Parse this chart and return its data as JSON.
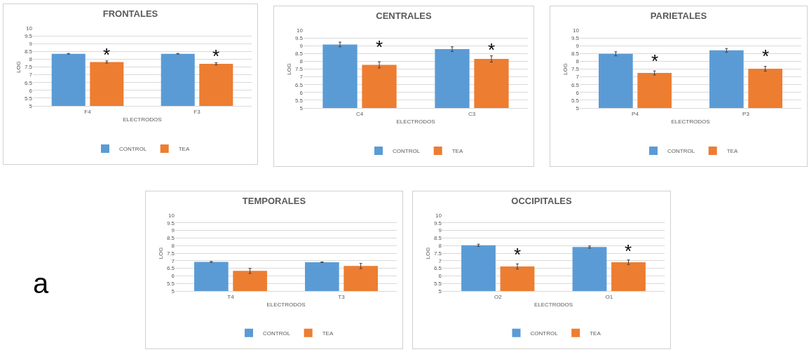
{
  "chart_data": [
    {
      "type": "bar",
      "title": "FRONTALES",
      "xlabel": "ELECTRODOS",
      "ylabel": "LOG",
      "categories": [
        "F4",
        "F3"
      ],
      "series": [
        {
          "name": "CONTROL",
          "color": "#5b9bd5",
          "values": [
            8.35,
            8.35
          ],
          "errors": [
            0.02,
            0.02
          ]
        },
        {
          "name": "TEA",
          "color": "#ed7d31",
          "values": [
            7.82,
            7.7
          ],
          "errors": [
            0.07,
            0.07
          ]
        }
      ],
      "ylim": [
        5,
        10
      ],
      "yticks": [
        5,
        5.5,
        6,
        6.5,
        7,
        7.5,
        8,
        8.5,
        9,
        9.5,
        10
      ],
      "grid": "y",
      "legend": "bottom",
      "annotations": [
        {
          "text": "*",
          "x": "F4",
          "y": 8.3
        },
        {
          "text": "*",
          "x": "F3",
          "y": 8.2
        }
      ]
    },
    {
      "type": "bar",
      "title": "CENTRALES",
      "xlabel": "ELECTRODOS",
      "ylabel": "LOG",
      "categories": [
        "C4",
        "C3"
      ],
      "series": [
        {
          "name": "CONTROL",
          "color": "#5b9bd5",
          "values": [
            9.08,
            8.78
          ],
          "errors": [
            0.15,
            0.15
          ]
        },
        {
          "name": "TEA",
          "color": "#ed7d31",
          "values": [
            7.77,
            8.15
          ],
          "errors": [
            0.2,
            0.2
          ]
        }
      ],
      "ylim": [
        5,
        10
      ],
      "yticks": [
        5,
        5.5,
        6,
        6.5,
        7,
        7.5,
        8,
        8.5,
        9,
        9.5,
        10
      ],
      "grid": "y",
      "legend": "bottom",
      "annotations": [
        {
          "text": "*",
          "x": "C4",
          "y": 8.9
        },
        {
          "text": "*",
          "x": "C3",
          "y": 8.75
        }
      ]
    },
    {
      "type": "bar",
      "title": "PARIETALES",
      "xlabel": "ELECTRODOS",
      "ylabel": "LOG",
      "categories": [
        "P4",
        "P3"
      ],
      "series": [
        {
          "name": "CONTROL",
          "color": "#5b9bd5",
          "values": [
            8.48,
            8.7
          ],
          "errors": [
            0.13,
            0.12
          ]
        },
        {
          "name": "TEA",
          "color": "#ed7d31",
          "values": [
            7.25,
            7.52
          ],
          "errors": [
            0.13,
            0.15
          ]
        }
      ],
      "ylim": [
        5,
        10
      ],
      "yticks": [
        5,
        5.5,
        6,
        6.5,
        7,
        7.5,
        8,
        8.5,
        9,
        9.5,
        10
      ],
      "grid": "y",
      "legend": "bottom",
      "annotations": [
        {
          "text": "*",
          "x": "P4",
          "y": 8.0
        },
        {
          "text": "*",
          "x": "P3",
          "y": 8.35
        }
      ]
    },
    {
      "type": "bar",
      "title": "TEMPORALES",
      "xlabel": "ELECTRODOS",
      "ylabel": "LOG",
      "categories": [
        "T4",
        "T3"
      ],
      "series": [
        {
          "name": "CONTROL",
          "color": "#5b9bd5",
          "values": [
            6.92,
            6.9
          ],
          "errors": [
            0.03,
            0.02
          ]
        },
        {
          "name": "TEA",
          "color": "#ed7d31",
          "values": [
            6.33,
            6.65
          ],
          "errors": [
            0.17,
            0.17
          ]
        }
      ],
      "ylim": [
        5,
        10
      ],
      "yticks": [
        5,
        5.5,
        6,
        6.5,
        7,
        7.5,
        8,
        8.5,
        9,
        9.5,
        10
      ],
      "grid": "y",
      "legend": "bottom",
      "annotations": [
        "a"
      ]
    },
    {
      "type": "bar",
      "title": "OCCIPITALES",
      "xlabel": "ELECTRODOS",
      "ylabel": "LOG",
      "categories": [
        "O2",
        "O1"
      ],
      "series": [
        {
          "name": "CONTROL",
          "color": "#5b9bd5",
          "values": [
            8.02,
            7.9
          ],
          "errors": [
            0.07,
            0.07
          ]
        },
        {
          "name": "TEA",
          "color": "#ed7d31",
          "values": [
            6.62,
            6.9
          ],
          "errors": [
            0.17,
            0.15
          ]
        }
      ],
      "ylim": [
        5,
        10
      ],
      "yticks": [
        5,
        5.5,
        6,
        6.5,
        7,
        7.5,
        8,
        8.5,
        9,
        9.5,
        10
      ],
      "grid": "y",
      "legend": "bottom",
      "annotations": [
        {
          "text": "*",
          "x": "O2",
          "y": 7.4
        },
        {
          "text": "*",
          "x": "O1",
          "y": 7.65
        }
      ]
    }
  ]
}
